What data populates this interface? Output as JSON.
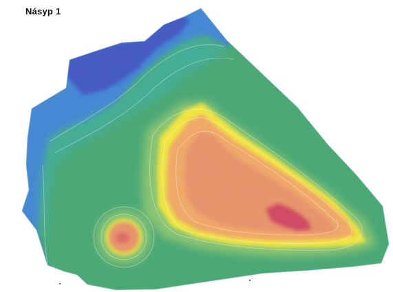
{
  "title": "Násyp 1",
  "colors": {
    "deep_blue": "#3f57c4",
    "blue": "#3f86d6",
    "teal": "#3fae9a",
    "green": "#46a873",
    "light_green": "#8fc86f",
    "yellow": "#f3e73a",
    "orange": "#f2a865",
    "salmon": "#e9926a",
    "peak_red": "#d04560"
  }
}
